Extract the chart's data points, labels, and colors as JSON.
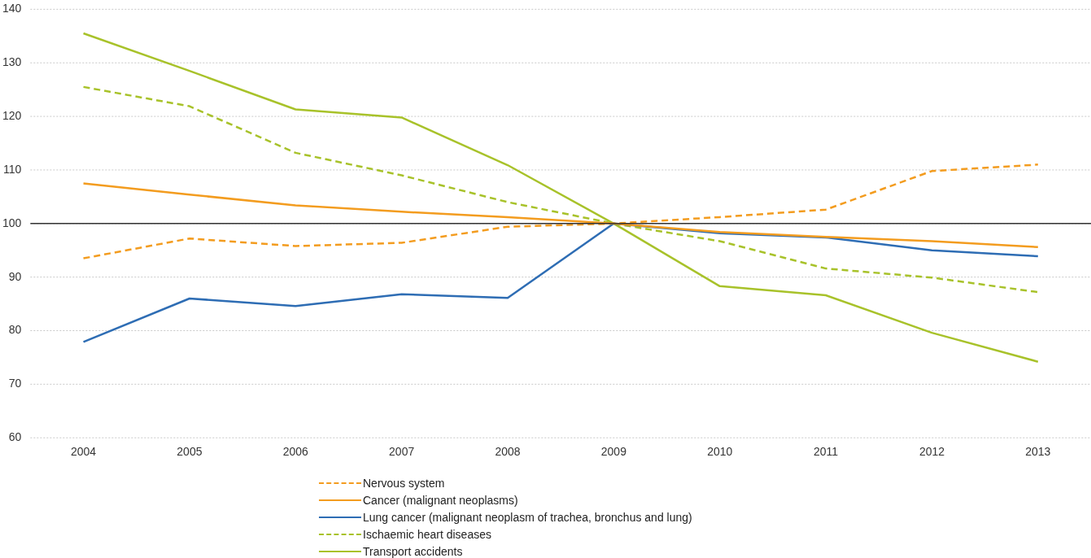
{
  "chart_data": {
    "type": "line",
    "categories": [
      "2004",
      "2005",
      "2006",
      "2007",
      "2008",
      "2009",
      "2010",
      "2011",
      "2012",
      "2013"
    ],
    "series": [
      {
        "name": "Nervous system",
        "color": "#f39c1f",
        "line_style": "dashed",
        "values": [
          93.5,
          97.2,
          95.8,
          96.4,
          99.4,
          100,
          101.2,
          102.6,
          109.8,
          111
        ]
      },
      {
        "name": "Cancer (malignant neoplasms)",
        "color": "#f39c1f",
        "line_style": "solid",
        "values": [
          107.5,
          105.4,
          103.4,
          102.2,
          101.2,
          100,
          98.4,
          97.5,
          96.7,
          95.6
        ]
      },
      {
        "name": "Lung cancer (malignant neoplasm of trachea, bronchus and lung)",
        "color": "#2e6db4",
        "line_style": "solid",
        "values": [
          77.9,
          86,
          84.6,
          86.8,
          86.1,
          100,
          98.2,
          97.4,
          95,
          93.9
        ]
      },
      {
        "name": "Ischaemic heart diseases",
        "color": "#a8c22a",
        "line_style": "dashed",
        "values": [
          125.5,
          121.9,
          113.2,
          109,
          104,
          100,
          96.7,
          91.6,
          89.9,
          87.2
        ]
      },
      {
        "name": "Transport accidents",
        "color": "#a8c22a",
        "line_style": "solid",
        "values": [
          135.5,
          128.5,
          121.3,
          119.8,
          110.9,
          100,
          88.3,
          86.6,
          79.6,
          74.2
        ]
      }
    ],
    "ylim": [
      60,
      140
    ],
    "yticks": [
      60,
      70,
      80,
      90,
      100,
      110,
      120,
      130,
      140
    ],
    "ref_lines": [
      {
        "axis": "y",
        "value": 100,
        "color": "#333333"
      }
    ],
    "grid": "y",
    "legend": "bottom",
    "marker": "none"
  }
}
